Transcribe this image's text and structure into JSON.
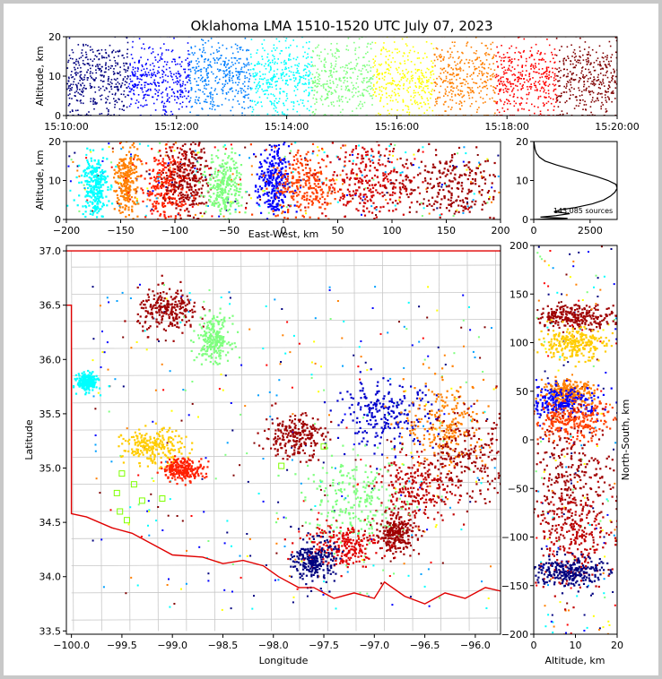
{
  "figure": {
    "title": "Oklahoma LMA 1510-1520 UTC July 07, 2023"
  },
  "chart_data": [
    {
      "type": "scatter",
      "panel": "altitude-time",
      "ylabel": "Altitude, km",
      "xlabel": "",
      "x_ticks": [
        "15:10:00",
        "15:12:00",
        "15:14:00",
        "15:16:00",
        "15:18:00",
        "15:20:00"
      ],
      "xlim": [
        "15:10:00",
        "15:20:00"
      ],
      "y_ticks": [
        "0",
        "10",
        "20"
      ],
      "ylim": [
        0,
        20
      ],
      "color_by": "time",
      "colormap": [
        "#00007f",
        "#0000ff",
        "#007fff",
        "#00ffff",
        "#7fff7f",
        "#ffff00",
        "#ff7f00",
        "#ff0000",
        "#7f0000"
      ]
    },
    {
      "type": "scatter",
      "panel": "east-west-altitude",
      "xlabel": "East-West, km",
      "ylabel": "Altitude, km",
      "x_ticks": [
        "−200",
        "−150",
        "−100",
        "−50",
        "0",
        "50",
        "100",
        "150",
        "200"
      ],
      "xlim": [
        -200,
        200
      ],
      "y_ticks": [
        "0",
        "10",
        "20"
      ],
      "ylim": [
        0,
        20
      ],
      "clusters": [
        {
          "x": -175,
          "y": 9,
          "sx": 6,
          "sy": 4,
          "c": "#00ffff"
        },
        {
          "x": -145,
          "y": 10,
          "sx": 5,
          "sy": 5,
          "c": "#ff7f00"
        },
        {
          "x": -110,
          "y": 9,
          "sx": 12,
          "sy": 5,
          "c": "#ff2000"
        },
        {
          "x": -90,
          "y": 11,
          "sx": 10,
          "sy": 5,
          "c": "#9f0000"
        },
        {
          "x": -55,
          "y": 9,
          "sx": 8,
          "sy": 4,
          "c": "#7fff7f"
        },
        {
          "x": -10,
          "y": 9,
          "sx": 7,
          "sy": 5,
          "c": "#0000ff"
        },
        {
          "x": 20,
          "y": 9,
          "sx": 15,
          "sy": 5,
          "c": "#ff4000"
        },
        {
          "x": 75,
          "y": 10,
          "sx": 20,
          "sy": 5,
          "c": "#d00000"
        },
        {
          "x": 150,
          "y": 9,
          "sx": 25,
          "sy": 5,
          "c": "#9f0000"
        }
      ]
    },
    {
      "type": "line",
      "panel": "source-altitude-histogram",
      "annotation": "143,085 sources",
      "x_ticks": [
        "0",
        "2500"
      ],
      "xlim": [
        0,
        3700
      ],
      "y_ticks": [
        "0",
        "10",
        "20"
      ],
      "ylim": [
        0,
        20
      ],
      "profile": [
        [
          0,
          0
        ],
        [
          1500,
          0.3
        ],
        [
          300,
          0.6
        ],
        [
          1000,
          1
        ],
        [
          1600,
          1.5
        ],
        [
          900,
          2
        ],
        [
          1200,
          2.5
        ],
        [
          1800,
          3
        ],
        [
          2600,
          4
        ],
        [
          3100,
          5
        ],
        [
          3400,
          6
        ],
        [
          3600,
          7
        ],
        [
          3700,
          8
        ],
        [
          3650,
          9
        ],
        [
          3300,
          10
        ],
        [
          2800,
          11
        ],
        [
          2200,
          12
        ],
        [
          1600,
          13
        ],
        [
          1000,
          14
        ],
        [
          500,
          15
        ],
        [
          250,
          16
        ],
        [
          120,
          17
        ],
        [
          60,
          18
        ],
        [
          30,
          19
        ],
        [
          10,
          20
        ]
      ]
    },
    {
      "type": "scatter",
      "panel": "plan-view",
      "xlabel": "Longitude",
      "ylabel": "Latitude",
      "x_ticks": [
        "−100.0",
        "−99.5",
        "−99.0",
        "−98.5",
        "−98.0",
        "−97.5",
        "−97.0",
        "−96.5",
        "−96.0"
      ],
      "xlim": [
        -100.05,
        -95.75
      ],
      "y_ticks": [
        "33.5",
        "34.0",
        "34.5",
        "35.0",
        "35.5",
        "36.0",
        "36.5",
        "37.0"
      ],
      "ylim": [
        33.47,
        37.05
      ],
      "state_border": [
        [
          -103,
          37.0
        ],
        [
          -94.5,
          37.0
        ],
        [
          -94.5,
          33.6
        ],
        [
          -95.9,
          33.9
        ],
        [
          -96.1,
          33.8
        ],
        [
          -96.3,
          33.85
        ],
        [
          -96.5,
          33.75
        ],
        [
          -96.7,
          33.82
        ],
        [
          -96.9,
          33.95
        ],
        [
          -97.0,
          33.8
        ],
        [
          -97.2,
          33.85
        ],
        [
          -97.4,
          33.8
        ],
        [
          -97.6,
          33.9
        ],
        [
          -97.75,
          33.9
        ],
        [
          -97.95,
          34.0
        ],
        [
          -98.1,
          34.1
        ],
        [
          -98.3,
          34.15
        ],
        [
          -98.5,
          34.12
        ],
        [
          -98.7,
          34.18
        ],
        [
          -99.0,
          34.2
        ],
        [
          -99.2,
          34.3
        ],
        [
          -99.4,
          34.4
        ],
        [
          -99.6,
          34.45
        ],
        [
          -99.85,
          34.55
        ],
        [
          -100.0,
          34.58
        ],
        [
          -100.0,
          36.5
        ],
        [
          -103,
          36.5
        ]
      ],
      "clusters": [
        {
          "x": -99.05,
          "y": 36.45,
          "sx": 0.15,
          "sy": 0.1,
          "c": "#9f0000"
        },
        {
          "x": -98.6,
          "y": 36.2,
          "sx": 0.08,
          "sy": 0.1,
          "c": "#7fff7f"
        },
        {
          "x": -99.85,
          "y": 35.8,
          "sx": 0.05,
          "sy": 0.04,
          "c": "#00ffff"
        },
        {
          "x": -99.2,
          "y": 35.2,
          "sx": 0.15,
          "sy": 0.08,
          "c": "#ffcc00"
        },
        {
          "x": -98.9,
          "y": 35.0,
          "sx": 0.1,
          "sy": 0.05,
          "c": "#ff2000"
        },
        {
          "x": -97.8,
          "y": 35.3,
          "sx": 0.15,
          "sy": 0.1,
          "c": "#9f0000"
        },
        {
          "x": -96.9,
          "y": 35.5,
          "sx": 0.25,
          "sy": 0.15,
          "c": "#0000cc"
        },
        {
          "x": -96.3,
          "y": 35.4,
          "sx": 0.2,
          "sy": 0.2,
          "c": "#ff7f00"
        },
        {
          "x": -96.1,
          "y": 35.1,
          "sx": 0.25,
          "sy": 0.2,
          "c": "#9f0000"
        },
        {
          "x": -96.6,
          "y": 34.8,
          "sx": 0.2,
          "sy": 0.15,
          "c": "#c00000"
        },
        {
          "x": -97.2,
          "y": 34.7,
          "sx": 0.25,
          "sy": 0.2,
          "c": "#7fff7f"
        },
        {
          "x": -97.35,
          "y": 34.3,
          "sx": 0.2,
          "sy": 0.1,
          "c": "#e00000"
        },
        {
          "x": -97.6,
          "y": 34.15,
          "sx": 0.1,
          "sy": 0.1,
          "c": "#00007f"
        },
        {
          "x": -96.8,
          "y": 34.4,
          "sx": 0.1,
          "sy": 0.08,
          "c": "#9f0000"
        }
      ],
      "station_markers": [
        [
          -99.5,
          34.95
        ],
        [
          -99.38,
          34.85
        ],
        [
          -99.55,
          34.77
        ],
        [
          -99.3,
          34.7
        ],
        [
          -99.1,
          34.72
        ],
        [
          -99.52,
          34.6
        ],
        [
          -99.45,
          34.52
        ],
        [
          -97.92,
          35.02
        ],
        [
          -97.5,
          35.2
        ]
      ]
    },
    {
      "type": "scatter",
      "panel": "altitude-north-south",
      "xlabel": "Altitude, km",
      "ylabel": "North-South, km",
      "x_ticks": [
        "0",
        "10",
        "20"
      ],
      "xlim": [
        0,
        20
      ],
      "y_ticks": [
        "200",
        "150",
        "100",
        "50",
        "0",
        "−50",
        "−100",
        "−150",
        "−200"
      ],
      "ylim": [
        -200,
        200
      ],
      "clusters": [
        {
          "x": 10,
          "y": 128,
          "sx": 5,
          "sy": 6,
          "c": "#9f0000"
        },
        {
          "x": 9,
          "y": 100,
          "sx": 4,
          "sy": 8,
          "c": "#ffcc00"
        },
        {
          "x": 8,
          "y": 50,
          "sx": 3,
          "sy": 6,
          "c": "#ff7f00"
        },
        {
          "x": 6,
          "y": 40,
          "sx": 5,
          "sy": 8,
          "c": "#0000ff"
        },
        {
          "x": 9,
          "y": 20,
          "sx": 5,
          "sy": 10,
          "c": "#ff4000"
        },
        {
          "x": 9,
          "y": -40,
          "sx": 5,
          "sy": 30,
          "c": "#9f0000"
        },
        {
          "x": 9,
          "y": -100,
          "sx": 5,
          "sy": 25,
          "c": "#c00000"
        },
        {
          "x": 8,
          "y": -135,
          "sx": 4,
          "sy": 8,
          "c": "#00007f"
        }
      ]
    }
  ]
}
